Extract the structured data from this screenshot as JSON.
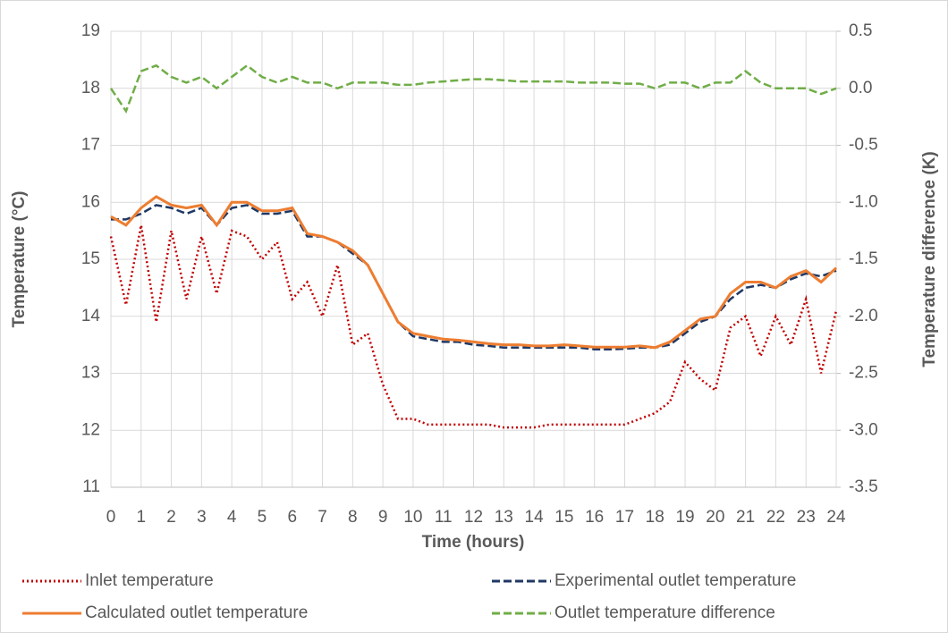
{
  "chart_data": {
    "type": "line",
    "x_label": "Time (hours)",
    "y_label": "Temperature (°C)",
    "y2_label": "Temperature difference (K)",
    "x": [
      0,
      0.5,
      1,
      1.5,
      2,
      2.5,
      3,
      3.5,
      4,
      4.5,
      5,
      5.5,
      6,
      6.5,
      7,
      7.5,
      8,
      8.5,
      9,
      9.5,
      10,
      10.5,
      11,
      11.5,
      12,
      12.5,
      13,
      13.5,
      14,
      14.5,
      15,
      15.5,
      16,
      16.5,
      17,
      17.5,
      18,
      18.5,
      19,
      19.5,
      20,
      20.5,
      21,
      21.5,
      22,
      22.5,
      23,
      23.5,
      24
    ],
    "xlim": [
      0,
      24
    ],
    "xticks": [
      0,
      1,
      2,
      3,
      4,
      5,
      6,
      7,
      8,
      9,
      10,
      11,
      12,
      13,
      14,
      15,
      16,
      17,
      18,
      19,
      20,
      21,
      22,
      23,
      24
    ],
    "ylim": [
      11,
      19
    ],
    "yticks": [
      11,
      12,
      13,
      14,
      15,
      16,
      17,
      18,
      19
    ],
    "y2lim": [
      -3.5,
      0.5
    ],
    "y2ticks": [
      -3.5,
      {
        "value": -3,
        "label": "-3.0"
      },
      -2.5,
      {
        "value": -2,
        "label": "-2.0"
      },
      -1.5,
      {
        "value": -1,
        "label": "-1.0"
      },
      -0.5,
      {
        "value": 0,
        "label": "0.0"
      },
      0.5
    ],
    "grid": true,
    "legend": "bottom",
    "series": [
      {
        "name": "Inlet temperature",
        "color": "#c00000",
        "dash": "dotted",
        "values": [
          15.4,
          14.2,
          15.6,
          13.9,
          15.5,
          14.3,
          15.4,
          14.4,
          15.5,
          15.4,
          15.0,
          15.3,
          14.3,
          14.6,
          14.0,
          14.9,
          13.5,
          13.7,
          12.8,
          12.2,
          12.2,
          12.1,
          12.1,
          12.1,
          12.1,
          12.1,
          12.05,
          12.05,
          12.05,
          12.1,
          12.1,
          12.1,
          12.1,
          12.1,
          12.1,
          12.2,
          12.3,
          12.5,
          13.2,
          12.9,
          12.7,
          13.8,
          14.0,
          13.3,
          14.0,
          13.5,
          14.3,
          13.0,
          14.1
        ]
      },
      {
        "name": "Experimental outlet temperature",
        "color": "#1f3864",
        "dash": "dashed",
        "values": [
          15.7,
          15.7,
          15.8,
          15.95,
          15.9,
          15.8,
          15.9,
          15.6,
          15.9,
          15.95,
          15.8,
          15.8,
          15.85,
          15.4,
          15.4,
          15.3,
          15.1,
          14.9,
          14.4,
          13.9,
          13.65,
          13.6,
          13.55,
          13.55,
          13.5,
          13.48,
          13.45,
          13.45,
          13.45,
          13.45,
          13.45,
          13.45,
          13.42,
          13.42,
          13.43,
          13.45,
          13.45,
          13.5,
          13.7,
          13.9,
          14.0,
          14.3,
          14.5,
          14.55,
          14.5,
          14.65,
          14.75,
          14.7,
          14.8
        ]
      },
      {
        "name": "Calculated outlet temperature",
        "color": "#ed7d31",
        "dash": "solid",
        "values": [
          15.75,
          15.6,
          15.9,
          16.1,
          15.95,
          15.9,
          15.95,
          15.6,
          16.0,
          16.0,
          15.85,
          15.85,
          15.9,
          15.45,
          15.4,
          15.3,
          15.15,
          14.9,
          14.4,
          13.9,
          13.7,
          13.65,
          13.6,
          13.58,
          13.55,
          13.52,
          13.5,
          13.5,
          13.48,
          13.48,
          13.5,
          13.48,
          13.46,
          13.46,
          13.46,
          13.48,
          13.45,
          13.55,
          13.75,
          13.95,
          14.0,
          14.4,
          14.6,
          14.6,
          14.5,
          14.7,
          14.8,
          14.6,
          14.85
        ]
      },
      {
        "name": "Outlet temperature difference",
        "color": "#70ad47",
        "dash": "dashed",
        "axis": "y2",
        "values": [
          0.0,
          -0.2,
          0.15,
          0.2,
          0.1,
          0.05,
          0.1,
          0.0,
          0.1,
          0.2,
          0.1,
          0.05,
          0.1,
          0.05,
          0.05,
          0.0,
          0.05,
          0.05,
          0.05,
          0.03,
          0.03,
          0.05,
          0.06,
          0.07,
          0.08,
          0.08,
          0.07,
          0.06,
          0.06,
          0.06,
          0.06,
          0.05,
          0.05,
          0.05,
          0.04,
          0.04,
          0.0,
          0.05,
          0.05,
          0.0,
          0.05,
          0.05,
          0.15,
          0.05,
          0.0,
          0.0,
          0.0,
          -0.05,
          0.0
        ]
      }
    ]
  }
}
